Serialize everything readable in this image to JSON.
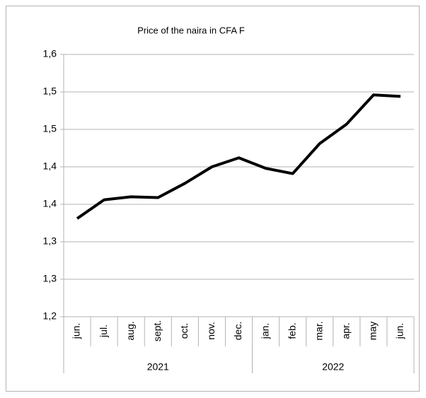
{
  "chart_data": {
    "type": "line",
    "title": "Price of the naira in CFA F",
    "categories": [
      "jun.",
      "jul.",
      "aug.",
      "sept.",
      "oct.",
      "nov.",
      "dec.",
      "jan.",
      "feb.",
      "mar.",
      "apr.",
      "may",
      "jun."
    ],
    "x_groups": [
      {
        "label": "2021",
        "span": 7
      },
      {
        "label": "2022",
        "span": 6
      }
    ],
    "series": [
      {
        "name": "Price",
        "color": "#000000",
        "values": [
          1.331,
          1.356,
          1.36,
          1.359,
          1.378,
          1.4,
          1.412,
          1.398,
          1.391,
          1.431,
          1.457,
          1.496,
          1.494
        ]
      }
    ],
    "ylim": [
      1.2,
      1.55
    ],
    "yticks": [
      {
        "value": 1.2,
        "label": "1,2"
      },
      {
        "value": 1.25,
        "label": "1,3"
      },
      {
        "value": 1.3,
        "label": "1,3"
      },
      {
        "value": 1.35,
        "label": "1,4"
      },
      {
        "value": 1.4,
        "label": "1,4"
      },
      {
        "value": 1.45,
        "label": "1,5"
      },
      {
        "value": 1.5,
        "label": "1,5"
      },
      {
        "value": 1.55,
        "label": "1,6"
      }
    ],
    "grid": true,
    "legend": false
  }
}
